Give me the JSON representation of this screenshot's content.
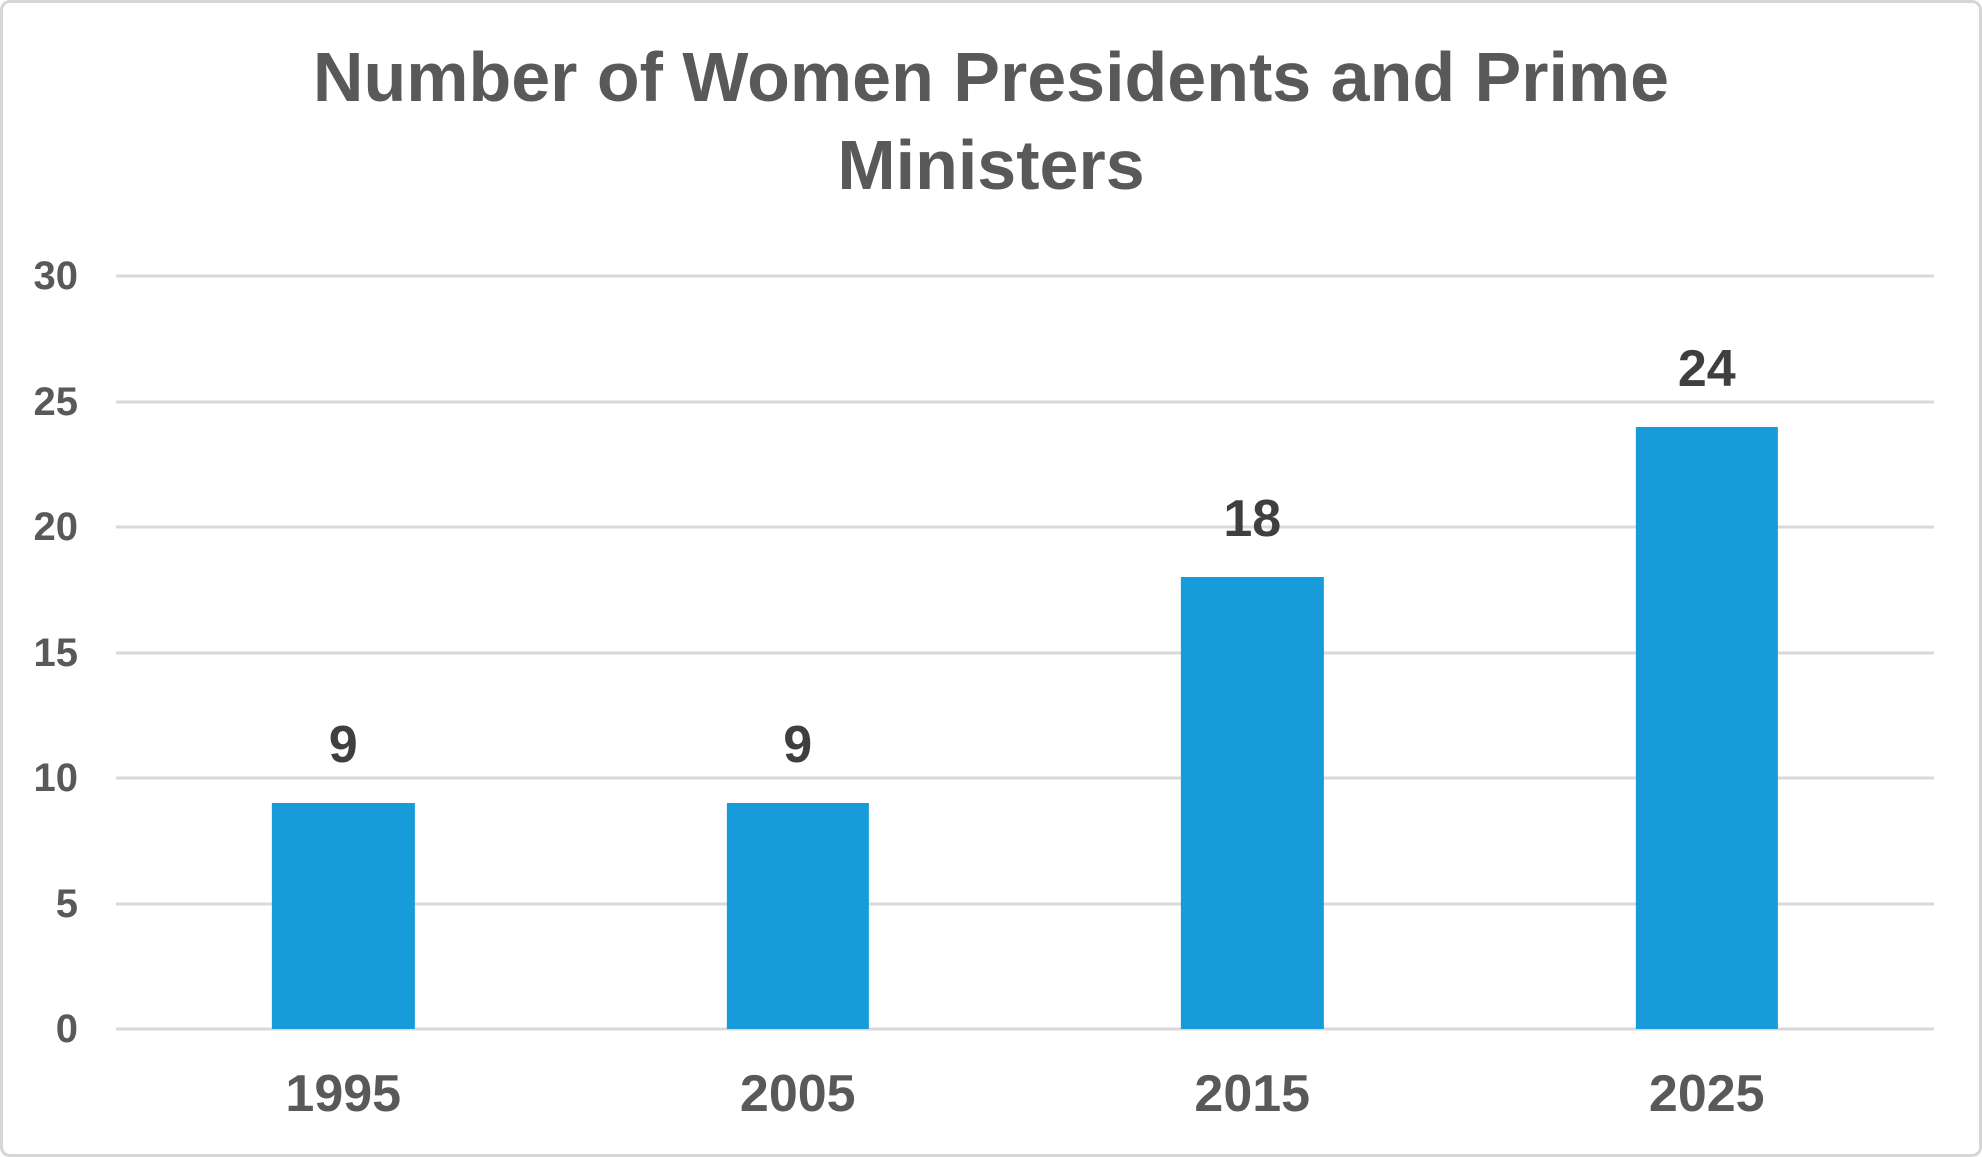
{
  "chart_data": {
    "type": "bar",
    "title": "Number of Women Presidents and Prime Ministers",
    "categories": [
      "1995",
      "2005",
      "2015",
      "2025"
    ],
    "values": [
      9,
      9,
      18,
      24
    ],
    "data_labels": [
      "9",
      "9",
      "18",
      "24"
    ],
    "yticks": [
      0,
      5,
      10,
      15,
      20,
      25,
      30
    ],
    "ylim": [
      0,
      30
    ],
    "xlabel": "",
    "ylabel": "",
    "grid": true,
    "legend": false,
    "colors": {
      "bar": "#189cd9",
      "title": "#595959",
      "axis_labels": "#595959",
      "data_labels": "#3f3f3f",
      "gridlines": "#d9d9d9",
      "background": "#ffffff",
      "frame_border": "#d6d6d6"
    }
  }
}
